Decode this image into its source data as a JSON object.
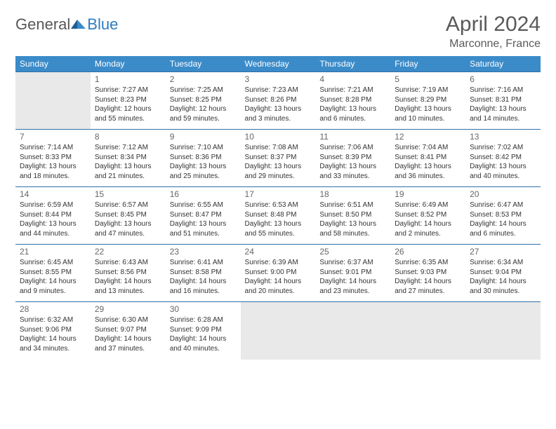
{
  "brand": {
    "general": "General",
    "blue": "Blue",
    "accent_color": "#2f7bbf"
  },
  "title": "April 2024",
  "location": "Marconne, France",
  "header_bg": "#3b8bc9",
  "row_border": "#2f6fa8",
  "empty_bg": "#e9e9e9",
  "weekdays": [
    "Sunday",
    "Monday",
    "Tuesday",
    "Wednesday",
    "Thursday",
    "Friday",
    "Saturday"
  ],
  "weeks": [
    [
      null,
      {
        "n": "1",
        "sr": "7:27 AM",
        "ss": "8:23 PM",
        "dh": "12",
        "dm": "55"
      },
      {
        "n": "2",
        "sr": "7:25 AM",
        "ss": "8:25 PM",
        "dh": "12",
        "dm": "59"
      },
      {
        "n": "3",
        "sr": "7:23 AM",
        "ss": "8:26 PM",
        "dh": "13",
        "dm": "3"
      },
      {
        "n": "4",
        "sr": "7:21 AM",
        "ss": "8:28 PM",
        "dh": "13",
        "dm": "6"
      },
      {
        "n": "5",
        "sr": "7:19 AM",
        "ss": "8:29 PM",
        "dh": "13",
        "dm": "10"
      },
      {
        "n": "6",
        "sr": "7:16 AM",
        "ss": "8:31 PM",
        "dh": "13",
        "dm": "14"
      }
    ],
    [
      {
        "n": "7",
        "sr": "7:14 AM",
        "ss": "8:33 PM",
        "dh": "13",
        "dm": "18"
      },
      {
        "n": "8",
        "sr": "7:12 AM",
        "ss": "8:34 PM",
        "dh": "13",
        "dm": "21"
      },
      {
        "n": "9",
        "sr": "7:10 AM",
        "ss": "8:36 PM",
        "dh": "13",
        "dm": "25"
      },
      {
        "n": "10",
        "sr": "7:08 AM",
        "ss": "8:37 PM",
        "dh": "13",
        "dm": "29"
      },
      {
        "n": "11",
        "sr": "7:06 AM",
        "ss": "8:39 PM",
        "dh": "13",
        "dm": "33"
      },
      {
        "n": "12",
        "sr": "7:04 AM",
        "ss": "8:41 PM",
        "dh": "13",
        "dm": "36"
      },
      {
        "n": "13",
        "sr": "7:02 AM",
        "ss": "8:42 PM",
        "dh": "13",
        "dm": "40"
      }
    ],
    [
      {
        "n": "14",
        "sr": "6:59 AM",
        "ss": "8:44 PM",
        "dh": "13",
        "dm": "44"
      },
      {
        "n": "15",
        "sr": "6:57 AM",
        "ss": "8:45 PM",
        "dh": "13",
        "dm": "47"
      },
      {
        "n": "16",
        "sr": "6:55 AM",
        "ss": "8:47 PM",
        "dh": "13",
        "dm": "51"
      },
      {
        "n": "17",
        "sr": "6:53 AM",
        "ss": "8:48 PM",
        "dh": "13",
        "dm": "55"
      },
      {
        "n": "18",
        "sr": "6:51 AM",
        "ss": "8:50 PM",
        "dh": "13",
        "dm": "58"
      },
      {
        "n": "19",
        "sr": "6:49 AM",
        "ss": "8:52 PM",
        "dh": "14",
        "dm": "2"
      },
      {
        "n": "20",
        "sr": "6:47 AM",
        "ss": "8:53 PM",
        "dh": "14",
        "dm": "6"
      }
    ],
    [
      {
        "n": "21",
        "sr": "6:45 AM",
        "ss": "8:55 PM",
        "dh": "14",
        "dm": "9"
      },
      {
        "n": "22",
        "sr": "6:43 AM",
        "ss": "8:56 PM",
        "dh": "14",
        "dm": "13"
      },
      {
        "n": "23",
        "sr": "6:41 AM",
        "ss": "8:58 PM",
        "dh": "14",
        "dm": "16"
      },
      {
        "n": "24",
        "sr": "6:39 AM",
        "ss": "9:00 PM",
        "dh": "14",
        "dm": "20"
      },
      {
        "n": "25",
        "sr": "6:37 AM",
        "ss": "9:01 PM",
        "dh": "14",
        "dm": "23"
      },
      {
        "n": "26",
        "sr": "6:35 AM",
        "ss": "9:03 PM",
        "dh": "14",
        "dm": "27"
      },
      {
        "n": "27",
        "sr": "6:34 AM",
        "ss": "9:04 PM",
        "dh": "14",
        "dm": "30"
      }
    ],
    [
      {
        "n": "28",
        "sr": "6:32 AM",
        "ss": "9:06 PM",
        "dh": "14",
        "dm": "34"
      },
      {
        "n": "29",
        "sr": "6:30 AM",
        "ss": "9:07 PM",
        "dh": "14",
        "dm": "37"
      },
      {
        "n": "30",
        "sr": "6:28 AM",
        "ss": "9:09 PM",
        "dh": "14",
        "dm": "40"
      },
      null,
      null,
      null,
      null
    ]
  ],
  "labels": {
    "sunrise": "Sunrise:",
    "sunset": "Sunset:",
    "daylight": "Daylight:",
    "hours": "hours",
    "and": "and",
    "minutes": "minutes."
  }
}
